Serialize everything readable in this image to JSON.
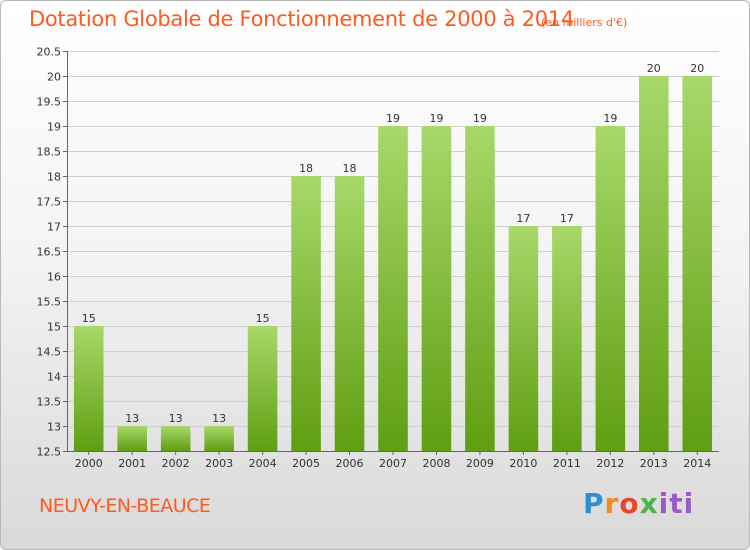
{
  "header": {
    "title": "Dotation Globale de Fonctionnement de 2000 à 2014",
    "subtitle": "(en milliers d'€)"
  },
  "footer": {
    "place": "NEUVY-EN-BEAUCE",
    "logo_text": "Proxiti"
  },
  "colors": {
    "title": "#ff5a1f",
    "bar_light": "#a8d86a",
    "bar_dark": "#5f9e12",
    "grid": "#d0d0d0"
  },
  "chart_data": {
    "type": "bar",
    "title": "Dotation Globale de Fonctionnement de 2000 à 2014",
    "xlabel": "",
    "ylabel": "",
    "categories": [
      "2000",
      "2001",
      "2002",
      "2003",
      "2004",
      "2005",
      "2006",
      "2007",
      "2008",
      "2009",
      "2010",
      "2011",
      "2012",
      "2013",
      "2014"
    ],
    "values": [
      15,
      13,
      13,
      13,
      15,
      18,
      18,
      19,
      19,
      19,
      17,
      17,
      19,
      20,
      20
    ],
    "data_labels": [
      "15",
      "13",
      "13",
      "13",
      "15",
      "18",
      "18",
      "19",
      "19",
      "19",
      "17",
      "17",
      "19",
      "20",
      "20"
    ],
    "ylim": [
      12.5,
      20.5
    ],
    "yticks": [
      12.5,
      13,
      13.5,
      14,
      14.5,
      15,
      15.5,
      16,
      16.5,
      17,
      17.5,
      18,
      18.5,
      19,
      19.5,
      20,
      20.5
    ],
    "grid": true,
    "legend": "none"
  }
}
